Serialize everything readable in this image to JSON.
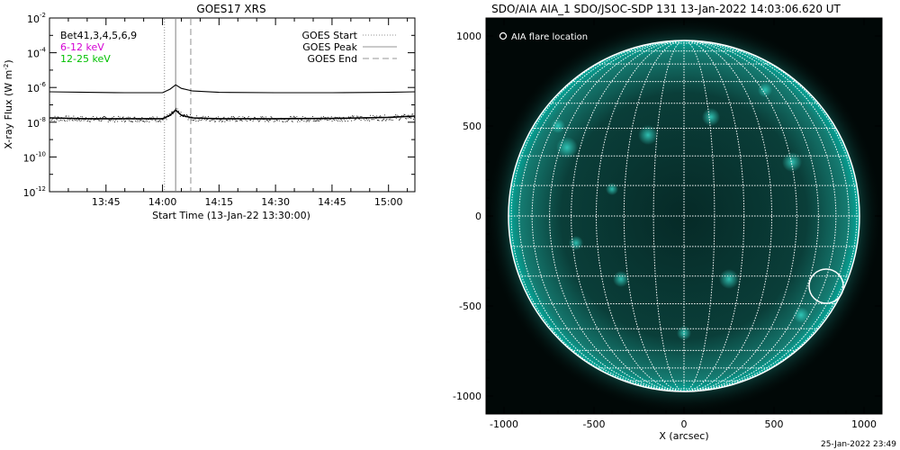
{
  "left_panel": {
    "chart_data": {
      "type": "line",
      "title": "GOES17 XRS",
      "xlabel": "Start Time (13-Jan-22 13:30:00)",
      "ylabel": "X-ray Flux (W m",
      "ylabel_sup": "-2",
      "ylabel_close": ")",
      "x_unit": "minutes after 13:30:00",
      "xlim": [
        0,
        97
      ],
      "ylim_log10": [
        -12,
        -2
      ],
      "y_scale": "log",
      "x_ticks": [
        {
          "value": 15,
          "label": "13:45"
        },
        {
          "value": 30,
          "label": "14:00"
        },
        {
          "value": 45,
          "label": "14:15"
        },
        {
          "value": 60,
          "label": "14:30"
        },
        {
          "value": 75,
          "label": "14:45"
        },
        {
          "value": 90,
          "label": "15:00"
        }
      ],
      "y_ticks": [
        {
          "exp": -2,
          "base": "10",
          "sup": "-2"
        },
        {
          "exp": -4,
          "base": "10",
          "sup": "-4"
        },
        {
          "exp": -6,
          "base": "10",
          "sup": "-6"
        },
        {
          "exp": -8,
          "base": "10",
          "sup": "-8"
        },
        {
          "exp": -10,
          "base": "10",
          "sup": "-10"
        },
        {
          "exp": -12,
          "base": "10",
          "sup": "-12"
        }
      ],
      "channels": [
        {
          "label": "Bet41,3,4,5,6,9",
          "color": "#000000"
        },
        {
          "label": "6-12 keV",
          "color": "#d400d4"
        },
        {
          "label": "12-25 keV",
          "color": "#00c000"
        }
      ],
      "legend_placement": "top-right",
      "event_lines": [
        {
          "name": "GOES Start",
          "x": 30.5,
          "style": "dotted",
          "color": "#aaaaaa"
        },
        {
          "name": "GOES Peak",
          "x": 33.5,
          "style": "solid",
          "color": "#aaaaaa"
        },
        {
          "name": "GOES End",
          "x": 37.5,
          "style": "dashed",
          "color": "#aaaaaa"
        }
      ],
      "series": [
        {
          "channel": "long",
          "x": [
            0,
            10,
            20,
            30,
            32,
            33.5,
            35,
            38,
            45,
            60,
            75,
            90,
            97
          ],
          "log10_flux": [
            -6.25,
            -6.28,
            -6.3,
            -6.3,
            -6.1,
            -5.85,
            -6.05,
            -6.2,
            -6.28,
            -6.3,
            -6.3,
            -6.28,
            -6.25
          ]
        },
        {
          "channel": "short",
          "x": [
            0,
            10,
            20,
            30,
            32,
            33.5,
            35,
            38,
            45,
            60,
            75,
            90,
            97
          ],
          "log10_flux": [
            -7.75,
            -7.8,
            -7.8,
            -7.8,
            -7.6,
            -7.3,
            -7.6,
            -7.75,
            -7.8,
            -7.8,
            -7.78,
            -7.72,
            -7.65
          ]
        }
      ]
    }
  },
  "right_panel": {
    "chart_data": {
      "type": "scatter",
      "title": "SDO/AIA AIA_1 SDO/JSOC-SDP 131 13-Jan-2022 14:03:06.620 UT",
      "xlabel": "X (arcsec)",
      "ylabel": "",
      "xlim": [
        -1100,
        1100
      ],
      "ylim": [
        -1100,
        1100
      ],
      "x_ticks": [
        -1000,
        -500,
        0,
        500,
        1000
      ],
      "y_ticks": [
        -1000,
        -500,
        0,
        500,
        1000
      ],
      "solar_radius_arcsec": 975,
      "grid_spacing_deg": 10,
      "image_color": "#00a89a",
      "legend": {
        "label": "AIA flare location",
        "placement": "top-left"
      },
      "flare_location": {
        "x": 790,
        "y": -390
      }
    }
  },
  "footer": {
    "timestamp": "25-Jan-2022 23:49"
  }
}
